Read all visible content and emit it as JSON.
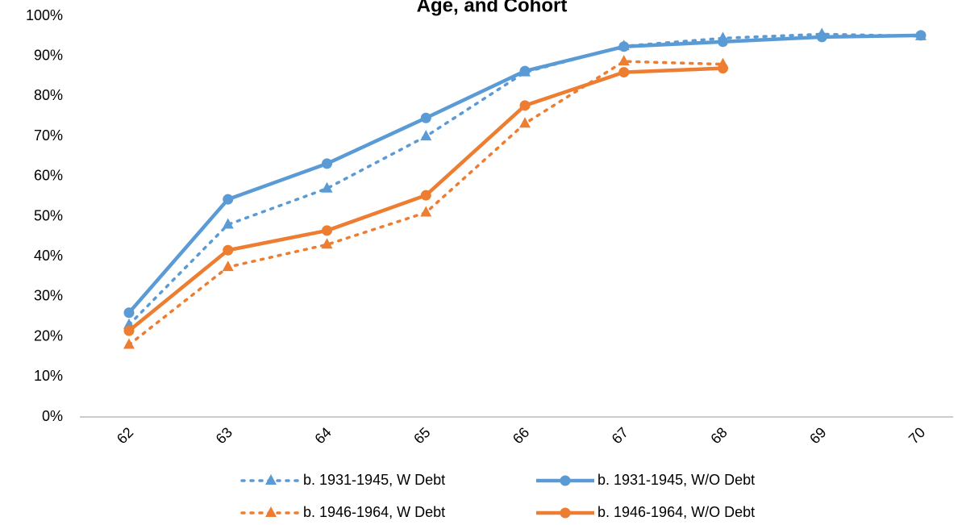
{
  "chart_data": {
    "type": "line",
    "title": "Age, and Cohort",
    "categories": [
      "62",
      "63",
      "64",
      "65",
      "66",
      "67",
      "68",
      "69",
      "70"
    ],
    "series": [
      {
        "name": "b. 1931-1945, W Debt",
        "color": "#5b9bd5",
        "dash": "dot",
        "marker": "triangle",
        "values": [
          23,
          48,
          57,
          70,
          86,
          92.5,
          94.5,
          95.5,
          95
        ]
      },
      {
        "name": "b. 1931-1945, W/O Debt",
        "color": "#5b9bd5",
        "dash": "solid",
        "marker": "circle",
        "values": [
          26,
          54.3,
          63.2,
          74.6,
          86.3,
          92.4,
          93.6,
          94.8,
          95.2
        ]
      },
      {
        "name": "b. 1946-1964, W Debt",
        "color": "#ed7d31",
        "dash": "dot",
        "marker": "triangle",
        "values": [
          18,
          37.4,
          43,
          51,
          73.2,
          88.7,
          88,
          null,
          null
        ]
      },
      {
        "name": "b. 1946-1964, W/O Debt",
        "color": "#ed7d31",
        "dash": "solid",
        "marker": "circle",
        "values": [
          21.5,
          41.6,
          46.5,
          55.3,
          77.7,
          86,
          87,
          null,
          null
        ]
      }
    ],
    "ylim": [
      0,
      100
    ],
    "yticks": [
      {
        "value": 0,
        "label": "0%"
      },
      {
        "value": 10,
        "label": "10%"
      },
      {
        "value": 20,
        "label": "20%"
      },
      {
        "value": 30,
        "label": "30%"
      },
      {
        "value": 40,
        "label": "40%"
      },
      {
        "value": 50,
        "label": "50%"
      },
      {
        "value": 60,
        "label": "60%"
      },
      {
        "value": 70,
        "label": "70%"
      },
      {
        "value": 80,
        "label": "80%"
      },
      {
        "value": 90,
        "label": "90%"
      },
      {
        "value": 100,
        "label": "100%"
      }
    ],
    "grid": false
  }
}
